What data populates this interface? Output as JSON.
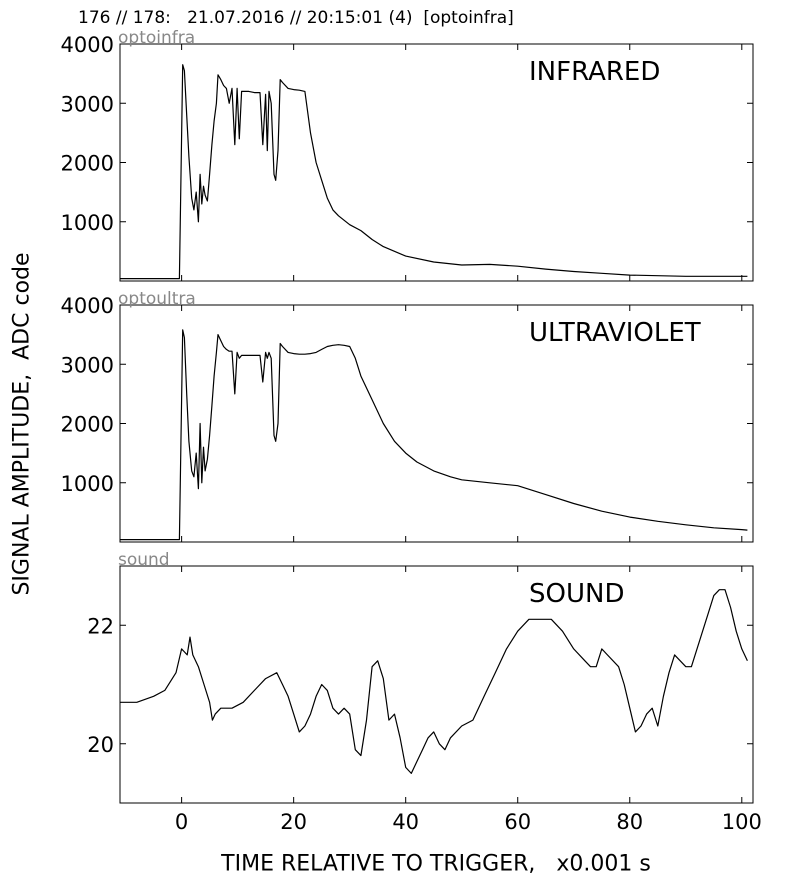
{
  "figure": {
    "title": "176 // 178:   21.07.2016 // 20:15:01 (4)  [optoinfra]",
    "ylabel": "SIGNAL AMPLITUDE,  ADC code",
    "xlabel": "TIME RELATIVE TO TRIGGER,   x0.001 s"
  },
  "chart_data": [
    {
      "type": "line",
      "channel": "optoinfra",
      "label": "INFRARED",
      "xlim": [
        -11,
        102
      ],
      "ylim": [
        0,
        4000
      ],
      "yticks": [
        1000,
        2000,
        3000,
        4000
      ],
      "xticks": [
        0,
        20,
        40,
        60,
        80,
        100
      ],
      "x": [
        -11,
        -2,
        -0.4,
        0.2,
        0.5,
        0.9,
        1.3,
        1.8,
        2.2,
        2.6,
        3.0,
        3.3,
        3.6,
        3.9,
        4.2,
        4.6,
        5.0,
        5.4,
        5.8,
        6.2,
        6.5,
        7.0,
        7.5,
        8.0,
        8.5,
        9.0,
        9.5,
        9.9,
        10.3,
        10.7,
        11.0,
        12.0,
        13.0,
        14.0,
        14.5,
        15.0,
        15.3,
        15.6,
        16.0,
        16.5,
        16.8,
        17.2,
        17.6,
        18.0,
        19.0,
        20.0,
        21.0,
        22.0,
        23.0,
        24.0,
        25.0,
        26.0,
        27.0,
        28.0,
        30.0,
        32.0,
        34.0,
        36.0,
        40.0,
        45.0,
        50.0,
        55.0,
        60.0,
        65.0,
        70.0,
        75.0,
        80.0,
        90.0,
        101.0
      ],
      "values": [
        40,
        40,
        40,
        3650,
        3550,
        2800,
        2100,
        1400,
        1200,
        1500,
        1000,
        1800,
        1300,
        1600,
        1450,
        1350,
        1800,
        2300,
        2700,
        3000,
        3480,
        3400,
        3300,
        3250,
        3000,
        3250,
        2300,
        3250,
        2400,
        3200,
        3200,
        3200,
        3180,
        3180,
        2300,
        3150,
        2200,
        3200,
        3000,
        1800,
        1700,
        2200,
        3400,
        3350,
        3250,
        3230,
        3220,
        3200,
        2500,
        2000,
        1700,
        1400,
        1200,
        1100,
        950,
        850,
        700,
        580,
        420,
        320,
        270,
        280,
        250,
        200,
        160,
        130,
        100,
        80,
        80
      ]
    },
    {
      "type": "line",
      "channel": "optoultra",
      "label": "ULTRAVIOLET",
      "xlim": [
        -11,
        102
      ],
      "ylim": [
        0,
        4000
      ],
      "yticks": [
        1000,
        2000,
        3000,
        4000
      ],
      "xticks": [
        0,
        20,
        40,
        60,
        80,
        100
      ],
      "x": [
        -11,
        -2,
        -0.4,
        0.2,
        0.5,
        0.9,
        1.3,
        1.8,
        2.2,
        2.6,
        3.0,
        3.3,
        3.6,
        3.9,
        4.2,
        4.6,
        5.0,
        5.4,
        5.8,
        6.2,
        6.5,
        7.0,
        7.5,
        8.0,
        8.5,
        9.0,
        9.5,
        9.9,
        10.3,
        10.7,
        11.0,
        12.0,
        13.0,
        14.0,
        14.5,
        15.0,
        15.3,
        15.6,
        16.0,
        16.5,
        16.8,
        17.2,
        17.6,
        18.0,
        19.0,
        20.0,
        21.0,
        22.0,
        23.0,
        24.0,
        25.0,
        26.0,
        27.0,
        28.0,
        29.0,
        30.0,
        31.0,
        32.0,
        34.0,
        36.0,
        38.0,
        40.0,
        42.0,
        45.0,
        48.0,
        50.0,
        55.0,
        60.0,
        65.0,
        70.0,
        75.0,
        80.0,
        85.0,
        90.0,
        95.0,
        100.0,
        101.0
      ],
      "values": [
        40,
        40,
        40,
        3580,
        3450,
        2500,
        1700,
        1200,
        1100,
        1500,
        900,
        2000,
        1000,
        1600,
        1200,
        1400,
        1800,
        2300,
        2800,
        3200,
        3500,
        3400,
        3300,
        3250,
        3220,
        3220,
        2500,
        3200,
        3100,
        3150,
        3150,
        3150,
        3150,
        3150,
        2700,
        3200,
        3100,
        3200,
        3100,
        1800,
        1700,
        2000,
        3350,
        3300,
        3200,
        3180,
        3170,
        3170,
        3180,
        3200,
        3250,
        3300,
        3320,
        3330,
        3320,
        3300,
        3100,
        2800,
        2400,
        2000,
        1700,
        1500,
        1350,
        1200,
        1100,
        1050,
        1000,
        950,
        800,
        650,
        520,
        420,
        350,
        290,
        240,
        210,
        200
      ]
    },
    {
      "type": "line",
      "channel": "sound",
      "label": "SOUND",
      "xlim": [
        -11,
        102
      ],
      "ylim": [
        19,
        23
      ],
      "yticks": [
        20,
        22
      ],
      "xticks": [
        0,
        20,
        40,
        60,
        80,
        100
      ],
      "x": [
        -11,
        -8,
        -5,
        -3,
        -1,
        0,
        1,
        1.5,
        2,
        3,
        4,
        5,
        5.5,
        6,
        7,
        9,
        11,
        13,
        15,
        17,
        18,
        19,
        20,
        21,
        22,
        23,
        24,
        25,
        26,
        27,
        28,
        29,
        30,
        31,
        32,
        33,
        34,
        35,
        36,
        37,
        38,
        39,
        40,
        41,
        42,
        43,
        44,
        45,
        46,
        47,
        48,
        50,
        52,
        54,
        56,
        58,
        60,
        62,
        64,
        66,
        68,
        70,
        72,
        73,
        74,
        75,
        76,
        78,
        79,
        80,
        81,
        82,
        83,
        84,
        85,
        86,
        87,
        88,
        89,
        90,
        91,
        92,
        93,
        94,
        95,
        96,
        97,
        98,
        99,
        100,
        101
      ],
      "values": [
        20.7,
        20.7,
        20.8,
        20.9,
        21.2,
        21.6,
        21.5,
        21.8,
        21.5,
        21.3,
        21.0,
        20.7,
        20.4,
        20.5,
        20.6,
        20.6,
        20.7,
        20.9,
        21.1,
        21.2,
        21.0,
        20.8,
        20.5,
        20.2,
        20.3,
        20.5,
        20.8,
        21.0,
        20.9,
        20.6,
        20.5,
        20.6,
        20.5,
        19.9,
        19.8,
        20.4,
        21.3,
        21.4,
        21.1,
        20.4,
        20.5,
        20.1,
        19.6,
        19.5,
        19.7,
        19.9,
        20.1,
        20.2,
        20.0,
        19.9,
        20.1,
        20.3,
        20.4,
        20.8,
        21.2,
        21.6,
        21.9,
        22.1,
        22.1,
        22.1,
        21.9,
        21.6,
        21.4,
        21.3,
        21.3,
        21.6,
        21.5,
        21.3,
        21.0,
        20.6,
        20.2,
        20.3,
        20.5,
        20.6,
        20.3,
        20.8,
        21.2,
        21.5,
        21.4,
        21.3,
        21.3,
        21.6,
        21.9,
        22.2,
        22.5,
        22.6,
        22.6,
        22.3,
        21.9,
        21.6,
        21.4
      ]
    }
  ]
}
